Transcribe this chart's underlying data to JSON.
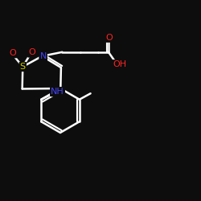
{
  "background": "#0d0d0d",
  "bond_color": "#ffffff",
  "bond_lw": 1.8,
  "atom_colors": {
    "S": "#cccc00",
    "N": "#4444ff",
    "O": "#ff2222",
    "C": "#ffffff",
    "H": "#ffffff"
  },
  "font_size_atoms": 8,
  "font_size_small": 7
}
